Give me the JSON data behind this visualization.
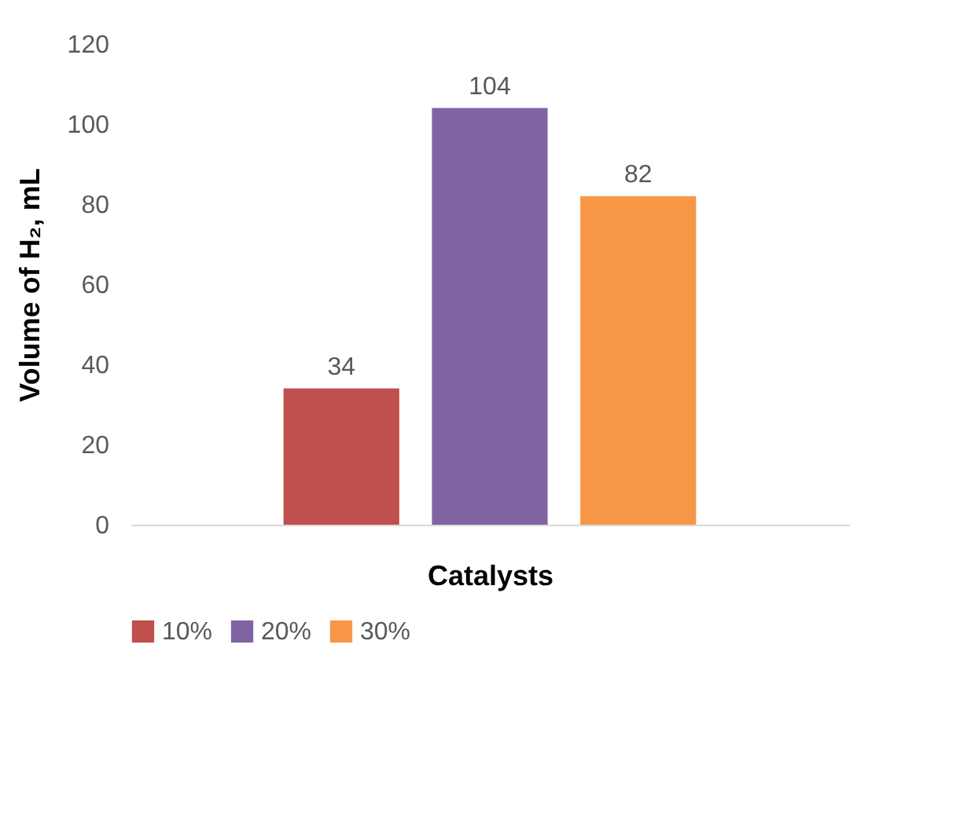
{
  "chart_data": {
    "type": "bar",
    "xlabel": "Catalysts",
    "ylabel": "Volume of H₂, mL",
    "categories": [
      null
    ],
    "series": [
      {
        "name": "10%",
        "color": "#c0504d",
        "values": [
          34
        ]
      },
      {
        "name": "20%",
        "color": "#8064a2",
        "values": [
          104
        ]
      },
      {
        "name": "30%",
        "color": "#f79646",
        "values": [
          82
        ]
      }
    ],
    "ylim": [
      0,
      120
    ],
    "yticks": [
      0,
      20,
      40,
      60,
      80,
      100,
      120
    ],
    "grid": false,
    "legend": "bottom",
    "data_labels": true
  }
}
